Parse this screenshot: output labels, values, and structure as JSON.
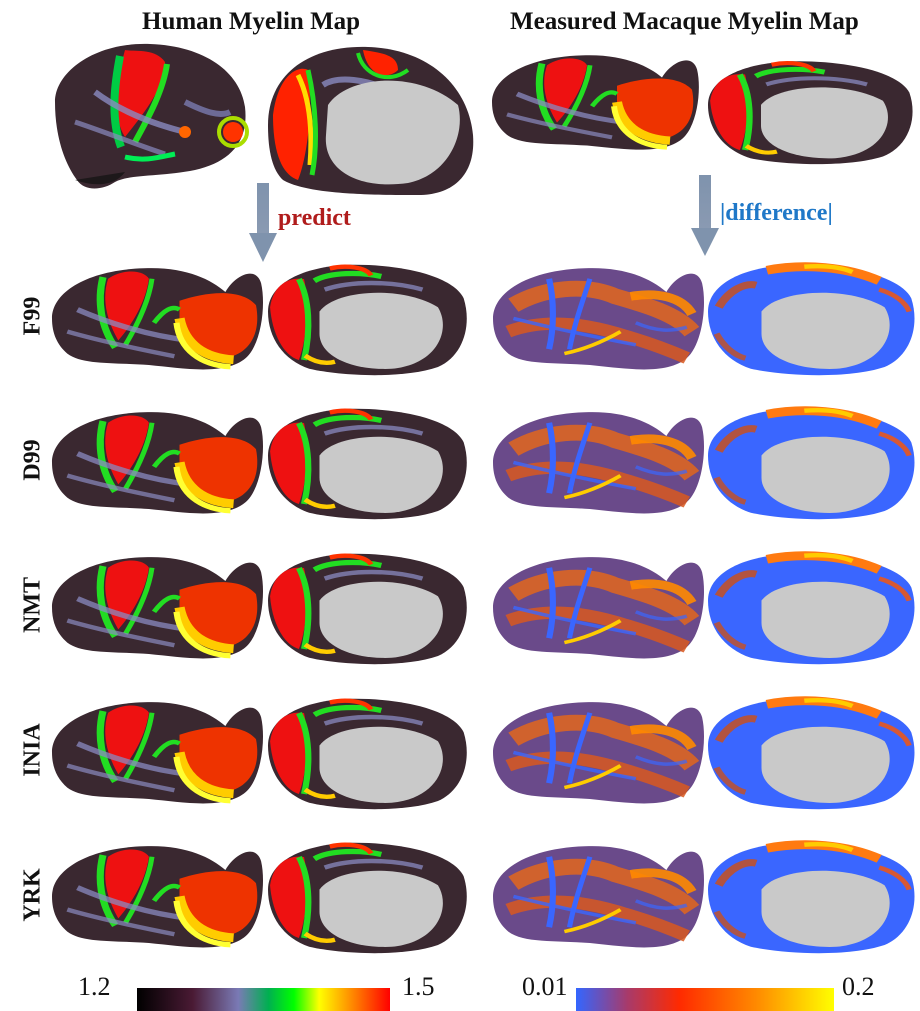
{
  "titles": {
    "left": "Human Myelin Map",
    "right": "Measured Macaque Myelin Map"
  },
  "arrows": {
    "predict": "predict",
    "difference": "|difference|"
  },
  "rows": [
    "F99",
    "D99",
    "NMT",
    "INIA",
    "YRK"
  ],
  "colorbars": {
    "myelin": {
      "min": "1.2",
      "max": "1.5",
      "colors": [
        "#000000",
        "#5a1a3a",
        "#5a5a8a",
        "#8d8dc6",
        "#00b050",
        "#00ff00",
        "#ffff00",
        "#ff8000",
        "#ff0000"
      ]
    },
    "difference": {
      "min": "0.01",
      "max": "0.2",
      "colors": [
        "#3366ff",
        "#cc3333",
        "#ff3300",
        "#ff7a00",
        "#ffd700",
        "#ffff00"
      ]
    }
  },
  "colors": {
    "arrow": "#7f93ad",
    "medial_wall": "#c9c9c9",
    "dark_cortex": "#3a2630"
  }
}
